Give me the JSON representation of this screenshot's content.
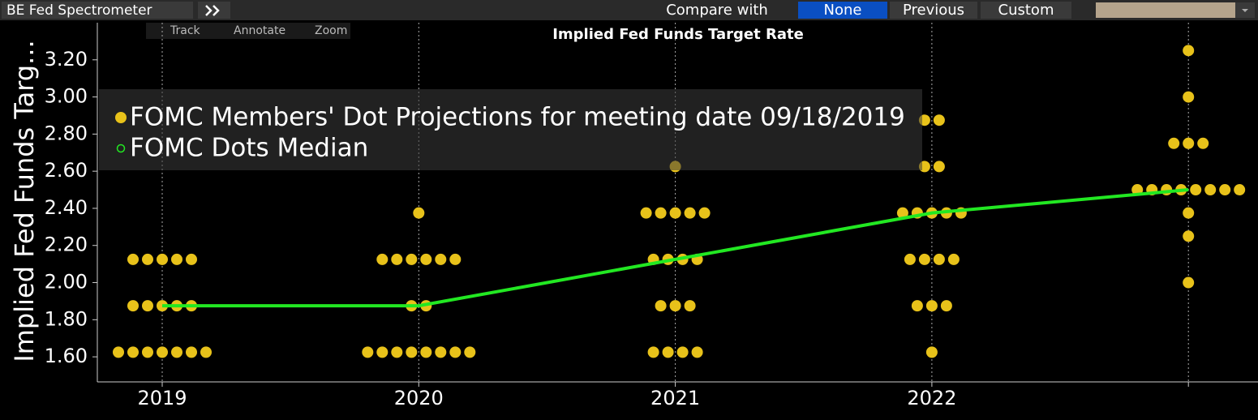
{
  "toolbar": {
    "title": "BE Fed Spectrometer",
    "compare_label": "Compare with",
    "options": [
      "None",
      "Previous",
      "Custom"
    ]
  },
  "chart_tools": [
    "Track",
    "Annotate",
    "Zoom"
  ],
  "chart_data": {
    "type": "scatter",
    "title": "Implied Fed Funds Target Rate",
    "y_label": "Implied Fed Funds Targ...",
    "categories": [
      "2019",
      "2020",
      "2021",
      "2022",
      null
    ],
    "ylim": [
      1.465,
      3.4
    ],
    "yticks": [
      {
        "value": 1.6,
        "label": "1.60"
      },
      {
        "value": 1.8,
        "label": "1.80"
      },
      {
        "value": 2.0,
        "label": "2.00"
      },
      {
        "value": 2.2,
        "label": "2.20"
      },
      {
        "value": 2.4,
        "label": "2.40"
      },
      {
        "value": 2.6,
        "label": "2.60"
      },
      {
        "value": 2.8,
        "label": "2.80"
      },
      {
        "value": 3.0,
        "label": "3.00"
      },
      {
        "value": 3.2,
        "label": "3.20"
      }
    ],
    "grid": true,
    "series": [
      {
        "name": "FOMC Members' Dot Projections for meeting date 09/18/2019",
        "color": "#e8c21a",
        "values": [
          [
            2.125,
            2.125,
            2.125,
            2.125,
            2.125,
            1.875,
            1.875,
            1.875,
            1.875,
            1.875,
            1.625,
            1.625,
            1.625,
            1.625,
            1.625,
            1.625,
            1.625
          ],
          [
            2.375,
            2.125,
            2.125,
            2.125,
            2.125,
            2.125,
            2.125,
            1.875,
            1.875,
            1.625,
            1.625,
            1.625,
            1.625,
            1.625,
            1.625,
            1.625,
            1.625
          ],
          [
            2.625,
            2.375,
            2.375,
            2.375,
            2.375,
            2.375,
            2.125,
            2.125,
            2.125,
            2.125,
            1.875,
            1.875,
            1.875,
            1.625,
            1.625,
            1.625,
            1.625
          ],
          [
            2.875,
            2.875,
            2.625,
            2.625,
            2.375,
            2.375,
            2.375,
            2.375,
            2.375,
            2.125,
            2.125,
            2.125,
            2.125,
            1.875,
            1.875,
            1.875,
            1.625
          ],
          [
            3.25,
            3.0,
            2.75,
            2.75,
            2.75,
            2.5,
            2.5,
            2.5,
            2.5,
            2.5,
            2.5,
            2.5,
            2.5,
            2.375,
            2.25,
            2.0
          ]
        ]
      },
      {
        "name": "FOMC Dots Median",
        "color": "#22e822",
        "values": [
          1.875,
          1.875,
          2.125,
          2.375,
          2.5
        ]
      }
    ]
  }
}
